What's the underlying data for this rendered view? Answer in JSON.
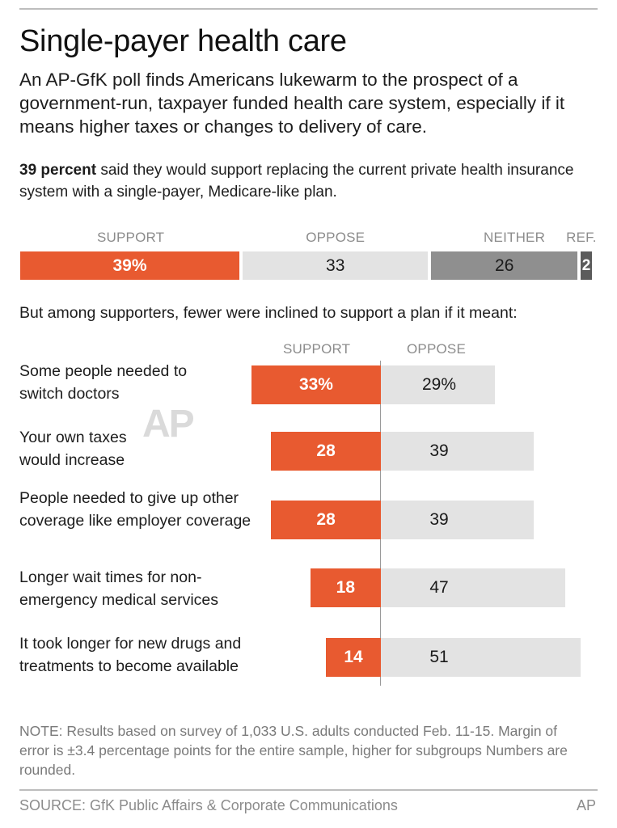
{
  "title": "Single-payer health care",
  "subtitle": "An AP-GfK poll finds Americans lukewarm to the prospect of a government-run, taxpayer funded health care system, especially if it means higher taxes or changes to delivery of care.",
  "lead": {
    "bold": "39 percent",
    "rest": " said they would support replacing the current private health insurance system with a single-payer, Medicare-like plan."
  },
  "middle_text": "But among supporters, fewer were inclined to support a plan if it meant:",
  "note": "NOTE: Results based on survey of 1,033 U.S. adults conducted Feb. 11-15. Margin of error is ±3.4 percentage points for the entire sample, higher for subgroups Numbers are rounded.",
  "source": "SOURCE: GfK Public Affairs & Corporate Communications",
  "credit": "AP",
  "watermark": "AP",
  "colors": {
    "support": "#e85a30",
    "oppose": "#e3e3e3",
    "neither": "#8f8f8f",
    "refused": "#5b5b5b"
  },
  "chart_data": [
    {
      "type": "bar",
      "orientation": "horizontal-stacked",
      "categories": [
        "SUPPORT",
        "OPPOSE",
        "NEITHER",
        "REF."
      ],
      "values": [
        39,
        33,
        26,
        2
      ],
      "labels": [
        "39%",
        "33",
        "26",
        "2"
      ],
      "units": "percent"
    },
    {
      "type": "bar",
      "orientation": "horizontal-diverging",
      "categories": [
        "Some people needed to switch doctors",
        "Your own taxes would increase",
        "People needed to give up other coverage like employer coverage",
        "Longer wait times for non-emergency medical services",
        "It took longer for new drugs and treatments to become available"
      ],
      "series": [
        {
          "name": "SUPPORT",
          "values": [
            33,
            28,
            28,
            18,
            14
          ],
          "labels": [
            "33%",
            "28",
            "28",
            "18",
            "14"
          ]
        },
        {
          "name": "OPPOSE",
          "values": [
            29,
            39,
            39,
            47,
            51
          ],
          "labels": [
            "29%",
            "39",
            "39",
            "47",
            "51"
          ]
        }
      ],
      "units": "percent"
    }
  ]
}
